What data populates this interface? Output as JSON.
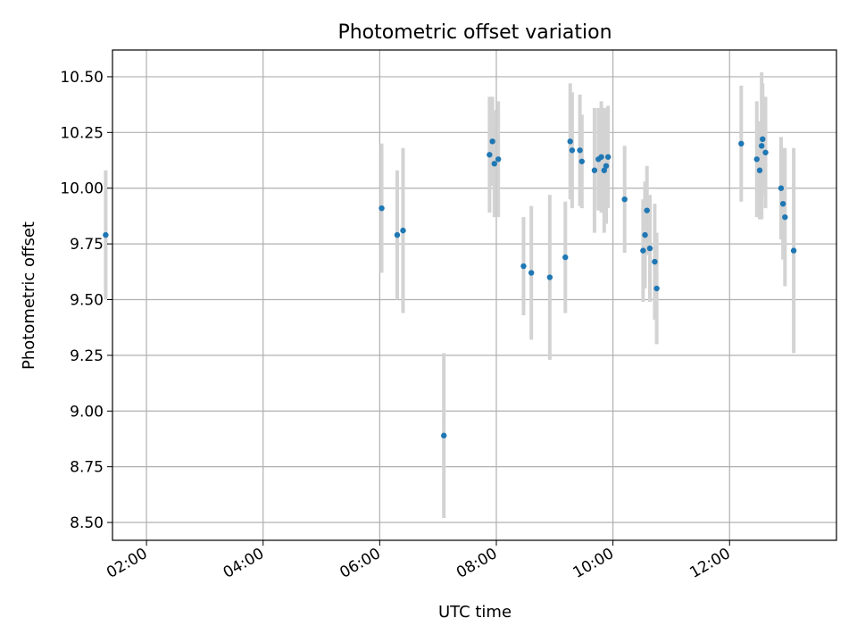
{
  "chart_data": {
    "type": "scatter",
    "title": "Photometric offset variation",
    "xlabel": "UTC time",
    "ylabel": "Photometric offset",
    "x_axis": "time",
    "xlim": [
      "01:25",
      "13:50"
    ],
    "ylim": [
      8.42,
      10.62
    ],
    "x_ticks": [
      "02:00",
      "04:00",
      "06:00",
      "08:00",
      "10:00",
      "12:00"
    ],
    "y_ticks": [
      8.5,
      8.75,
      9.0,
      9.25,
      9.5,
      9.75,
      10.0,
      10.25,
      10.5
    ],
    "y_tick_labels": [
      "8.50",
      "8.75",
      "9.00",
      "9.25",
      "9.50",
      "9.75",
      "10.00",
      "10.25",
      "10.50"
    ],
    "grid": true,
    "colors": {
      "point": "#1f77b4",
      "errorbar": "#d3d3d3",
      "grid": "#b0b0b0"
    },
    "points": [
      {
        "t": "01:18",
        "y": 9.79,
        "err": 0.29
      },
      {
        "t": "06:02",
        "y": 9.91,
        "err": 0.29
      },
      {
        "t": "06:18",
        "y": 9.79,
        "err": 0.29
      },
      {
        "t": "06:24",
        "y": 9.81,
        "err": 0.37
      },
      {
        "t": "07:06",
        "y": 8.89,
        "err": 0.37
      },
      {
        "t": "07:53",
        "y": 10.15,
        "err": 0.26
      },
      {
        "t": "07:56",
        "y": 10.21,
        "err": 0.2
      },
      {
        "t": "07:58",
        "y": 10.11,
        "err": 0.24
      },
      {
        "t": "08:02",
        "y": 10.13,
        "err": 0.26
      },
      {
        "t": "08:28",
        "y": 9.65,
        "err": 0.22
      },
      {
        "t": "08:36",
        "y": 9.62,
        "err": 0.3
      },
      {
        "t": "08:55",
        "y": 9.6,
        "err": 0.37
      },
      {
        "t": "09:11",
        "y": 9.69,
        "err": 0.25
      },
      {
        "t": "09:16",
        "y": 10.21,
        "err": 0.26
      },
      {
        "t": "09:18",
        "y": 10.17,
        "err": 0.26
      },
      {
        "t": "09:26",
        "y": 10.17,
        "err": 0.25
      },
      {
        "t": "09:28",
        "y": 10.12,
        "err": 0.21
      },
      {
        "t": "09:41",
        "y": 10.08,
        "err": 0.28
      },
      {
        "t": "09:45",
        "y": 10.13,
        "err": 0.23
      },
      {
        "t": "09:48",
        "y": 10.14,
        "err": 0.25
      },
      {
        "t": "09:51",
        "y": 10.08,
        "err": 0.28
      },
      {
        "t": "09:53",
        "y": 10.1,
        "err": 0.26
      },
      {
        "t": "09:55",
        "y": 10.14,
        "err": 0.23
      },
      {
        "t": "10:12",
        "y": 9.95,
        "err": 0.24
      },
      {
        "t": "10:31",
        "y": 9.72,
        "err": 0.23
      },
      {
        "t": "10:33",
        "y": 9.79,
        "err": 0.24
      },
      {
        "t": "10:35",
        "y": 9.9,
        "err": 0.2
      },
      {
        "t": "10:38",
        "y": 9.73,
        "err": 0.24
      },
      {
        "t": "10:43",
        "y": 9.67,
        "err": 0.26
      },
      {
        "t": "10:45",
        "y": 9.55,
        "err": 0.25
      },
      {
        "t": "12:12",
        "y": 10.2,
        "err": 0.26
      },
      {
        "t": "12:28",
        "y": 10.13,
        "err": 0.26
      },
      {
        "t": "12:31",
        "y": 10.08,
        "err": 0.22
      },
      {
        "t": "12:33",
        "y": 10.19,
        "err": 0.33
      },
      {
        "t": "12:34",
        "y": 10.22,
        "err": 0.25
      },
      {
        "t": "12:37",
        "y": 10.16,
        "err": 0.25
      },
      {
        "t": "12:53",
        "y": 10.0,
        "err": 0.23
      },
      {
        "t": "12:55",
        "y": 9.93,
        "err": 0.25
      },
      {
        "t": "12:57",
        "y": 9.87,
        "err": 0.31
      },
      {
        "t": "13:06",
        "y": 9.72,
        "err": 0.46
      }
    ]
  }
}
